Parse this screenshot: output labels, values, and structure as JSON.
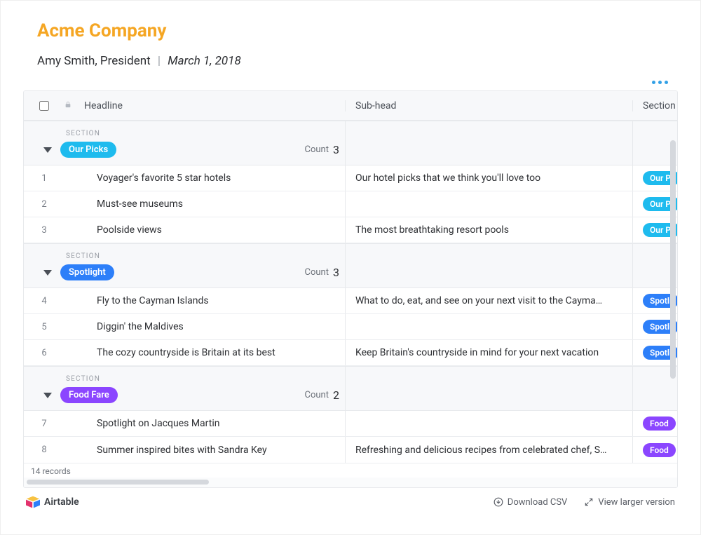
{
  "header": {
    "title": "Acme Company",
    "title_color": "#f5a623",
    "author": "Amy Smith, President",
    "date": "March 1, 2018"
  },
  "table": {
    "columns": {
      "headline": "Headline",
      "subhead": "Sub-head",
      "section": "Section"
    },
    "section_label": "SECTION",
    "count_label": "Count",
    "sections": [
      {
        "id": "our-picks",
        "name": "Our Picks",
        "pill_color": "#1ebbee",
        "count": "3",
        "rows": [
          {
            "n": "1",
            "headline": "Voyager's favorite 5 star hotels",
            "subhead": "Our hotel picks that we think you'll love too",
            "tag": "Our Pi"
          },
          {
            "n": "2",
            "headline": "Must-see museums",
            "subhead": "",
            "tag": "Our Pi"
          },
          {
            "n": "3",
            "headline": "Poolside views",
            "subhead": "The most breathtaking resort pools",
            "tag": "Our Pi"
          }
        ]
      },
      {
        "id": "spotlight",
        "name": "Spotlight",
        "pill_color": "#2d7ff9",
        "count": "3",
        "rows": [
          {
            "n": "4",
            "headline": "Fly to the Cayman Islands",
            "subhead": "What to do, eat, and see on your next visit to the Cayma…",
            "tag": "Spotli"
          },
          {
            "n": "5",
            "headline": "Diggin' the Maldives",
            "subhead": "",
            "tag": "Spotli"
          },
          {
            "n": "6",
            "headline": "The cozy countryside is Britain at its best",
            "subhead": "Keep Britain's countryside in mind for your next vacation",
            "tag": "Spotli"
          }
        ]
      },
      {
        "id": "food-fare",
        "name": "Food Fare",
        "pill_color": "#8b46ff",
        "count": "2",
        "rows": [
          {
            "n": "7",
            "headline": "Spotlight on Jacques Martin",
            "subhead": "",
            "tag": "Food"
          },
          {
            "n": "8",
            "headline": "Summer inspired bites with Sandra Key",
            "subhead": "Refreshing and delicious recipes from celebrated chef, S…",
            "tag": "Food"
          }
        ]
      }
    ],
    "record_count": "14 records"
  },
  "footer": {
    "brand": "Airtable",
    "download_csv": "Download CSV",
    "view_larger": "View larger version"
  },
  "colors": {
    "background": "#ffffff",
    "header_bg": "#f7f8fa",
    "border": "#e7e9ec",
    "text": "#2d2f33",
    "muted": "#9a9ea6",
    "accent_dots": "#32a0e6"
  }
}
